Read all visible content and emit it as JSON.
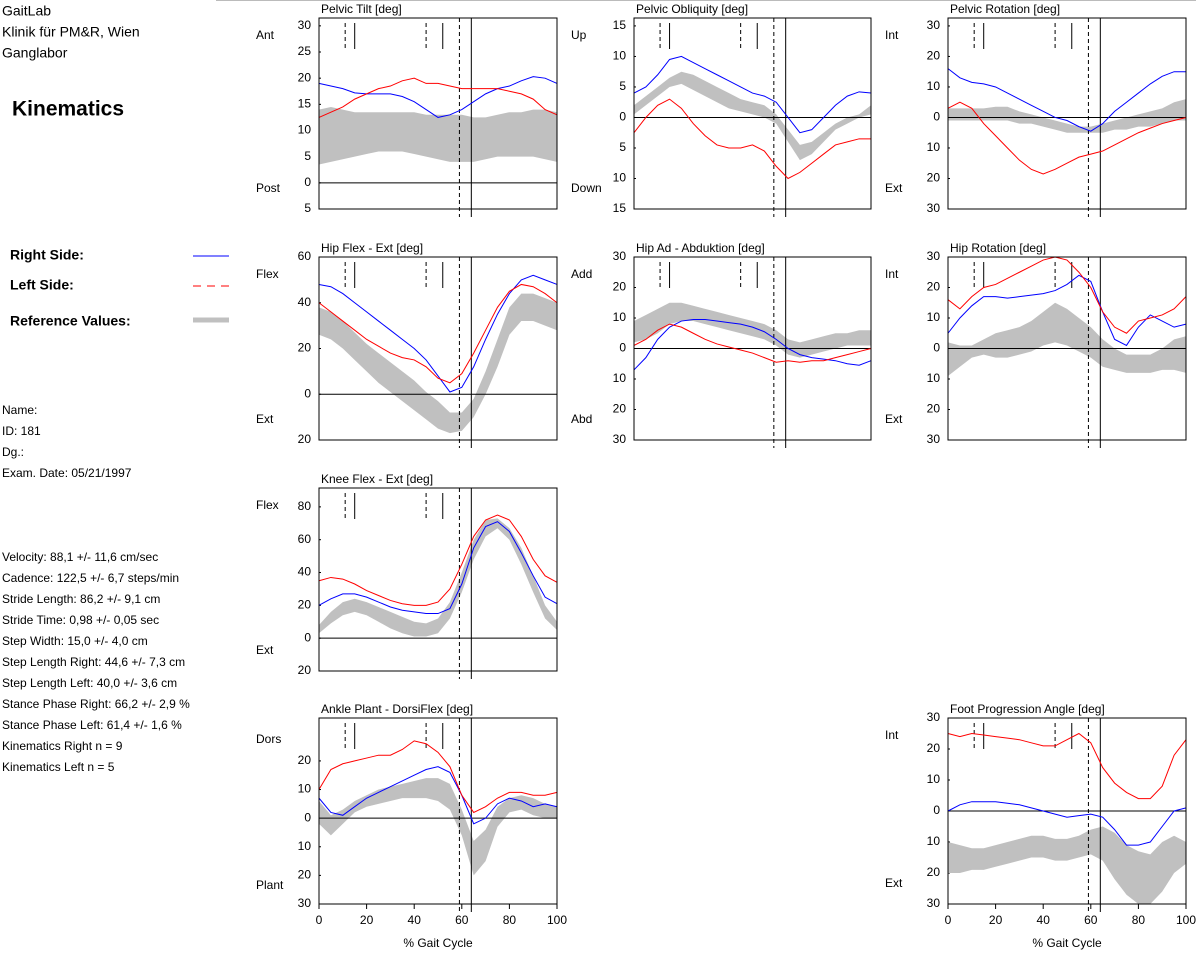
{
  "header": {
    "lab": "GaitLab",
    "clinic": "Klinik für PM&R, Wien",
    "department": "Ganglabor",
    "report": "Kinematics"
  },
  "legend": {
    "right": {
      "name": "Right Side:",
      "color": "#0000ff"
    },
    "left": {
      "name": "Left Side:",
      "color": "#ff0000"
    },
    "reference": {
      "name": "Reference Values:",
      "color": "#c0c0c0"
    }
  },
  "patient": [
    "Name:",
    "ID: 181",
    "Dg.:",
    "Exam. Date: 05/21/1997"
  ],
  "parameters": [
    "Velocity: 88,1 +/- 11,6 cm/sec",
    "Cadence: 122,5 +/- 6,7 steps/min",
    "Stride Length:  86,2 +/- 9,1 cm",
    "Stride Time:  0,98 +/- 0,05 sec",
    "Step Width: 15,0 +/- 4,0 cm",
    "Step Length Right:  44,6 +/- 7,3 cm",
    "Step Length Left:  40,0 +/- 3,6 cm",
    "Stance Phase Right:  66,2 +/- 2,9 %",
    "Stance Phase Left:  61,4 +/- 1,6 %",
    "Kinematics Right n = 9",
    "Kinematics Left n = 5"
  ],
  "events": {
    "left": [
      11,
      45,
      59
    ],
    "right": [
      15,
      52,
      64
    ]
  },
  "chart_data": [
    {
      "type": "line",
      "title": "Pelvic Tilt [deg]",
      "upper_label": "Ant",
      "lower_label": "Post",
      "x": [
        0,
        5,
        10,
        15,
        20,
        25,
        30,
        35,
        40,
        45,
        50,
        55,
        60,
        65,
        70,
        75,
        80,
        85,
        90,
        95,
        100
      ],
      "xlim": [
        0,
        100
      ],
      "ylim": [
        -5,
        31.5
      ],
      "yticks": [
        {
          "value": -5,
          "label": "5"
        },
        0,
        5,
        10,
        15,
        20,
        25,
        30
      ],
      "right": [
        19,
        18.5,
        18,
        17.2,
        17,
        17,
        17,
        16.5,
        15.5,
        14,
        12.5,
        13,
        14,
        15.5,
        17,
        18,
        18.5,
        19.5,
        20.3,
        20,
        19
      ],
      "left": [
        12.5,
        13.5,
        14.5,
        16,
        17,
        18,
        18.5,
        19.5,
        20,
        19,
        19,
        18.5,
        18,
        18,
        18,
        18,
        17.5,
        17,
        16,
        14,
        13
      ],
      "reference": {
        "lower": [
          3.5,
          4,
          4.5,
          5,
          5.5,
          6,
          6,
          6,
          5.5,
          5,
          4.5,
          4,
          4,
          4,
          4.5,
          5,
          5,
          5,
          5,
          4.5,
          4
        ],
        "upper": [
          14,
          14.5,
          14,
          13.5,
          13.5,
          13.5,
          13.5,
          13.5,
          13.5,
          13,
          13,
          13,
          13,
          12.5,
          12.5,
          13,
          13.5,
          13.5,
          14,
          14,
          13.5
        ]
      }
    },
    {
      "type": "line",
      "title": "Pelvic Obliquity [deg]",
      "upper_label": "Up",
      "lower_label": "Down",
      "x": [
        0,
        5,
        10,
        15,
        20,
        25,
        30,
        35,
        40,
        45,
        50,
        55,
        60,
        65,
        70,
        75,
        80,
        85,
        90,
        95,
        100
      ],
      "xlim": [
        0,
        100
      ],
      "ylim": [
        -15,
        16.3
      ],
      "yticks": [
        {
          "value": -15,
          "label": "15"
        },
        {
          "value": -10,
          "label": "10"
        },
        {
          "value": -5,
          "label": "5"
        },
        0,
        5,
        10,
        15
      ],
      "right": [
        4,
        5,
        7,
        9.5,
        10,
        9,
        8,
        7,
        6,
        5,
        4,
        3.5,
        2.5,
        0,
        -2.5,
        -2,
        0,
        2,
        3.5,
        4.2,
        4
      ],
      "left": [
        -2.5,
        0,
        2,
        3,
        1.5,
        -1,
        -3,
        -4.5,
        -5,
        -5,
        -4.5,
        -5.5,
        -8,
        -10,
        -9,
        -7.5,
        -6,
        -4.5,
        -4,
        -3.5,
        -3.5
      ],
      "reference": {
        "lower": [
          0.5,
          2,
          3.5,
          5,
          5.5,
          4.5,
          3.5,
          2.5,
          1.5,
          1,
          0.5,
          0,
          -1,
          -4,
          -7,
          -6,
          -4,
          -2,
          -1,
          0,
          0.5
        ],
        "upper": [
          2,
          3.5,
          5,
          6.5,
          7.5,
          7,
          6,
          5,
          4,
          3,
          2.5,
          2,
          0.5,
          -2,
          -4.5,
          -4,
          -2.5,
          -1,
          0,
          0.5,
          2
        ]
      }
    },
    {
      "type": "line",
      "title": "Pelvic Rotation [deg]",
      "upper_label": "Int",
      "lower_label": "Ext",
      "x": [
        0,
        5,
        10,
        15,
        20,
        25,
        30,
        35,
        40,
        45,
        50,
        55,
        60,
        65,
        70,
        75,
        80,
        85,
        90,
        95,
        100
      ],
      "xlim": [
        0,
        100
      ],
      "ylim": [
        -30,
        32.6
      ],
      "yticks": [
        {
          "value": -30,
          "label": "30"
        },
        {
          "value": -20,
          "label": "20"
        },
        {
          "value": -10,
          "label": "10"
        },
        0,
        10,
        20,
        30
      ],
      "right": [
        16,
        13,
        11.5,
        11,
        10,
        8,
        6,
        4,
        2,
        0,
        -1,
        -3,
        -4.5,
        -2,
        2,
        5,
        8,
        11,
        13.5,
        15,
        15
      ],
      "left": [
        3,
        5,
        3,
        -2,
        -6,
        -10,
        -14,
        -17,
        -18.5,
        -17,
        -15,
        -13,
        -12,
        -11,
        -9,
        -7,
        -5,
        -3.5,
        -2,
        -1,
        0
      ],
      "reference": {
        "lower": [
          -1,
          -1,
          -1,
          -1,
          -1,
          -1,
          -2,
          -2,
          -3,
          -4,
          -5,
          -5,
          -5,
          -5,
          -4,
          -4,
          -3,
          -3,
          -2,
          -1,
          -1
        ],
        "upper": [
          3,
          3,
          3,
          3,
          3.5,
          3.5,
          2,
          1,
          0,
          -1,
          -2,
          -3,
          -3,
          -2,
          -1,
          0,
          1,
          2,
          3,
          5,
          6
        ]
      }
    },
    {
      "type": "line",
      "title": "Hip Flex - Ext [deg]",
      "upper_label": "Flex",
      "lower_label": "Ext",
      "x": [
        0,
        5,
        10,
        15,
        20,
        25,
        30,
        35,
        40,
        45,
        50,
        55,
        60,
        65,
        70,
        75,
        80,
        85,
        90,
        95,
        100
      ],
      "xlim": [
        0,
        100
      ],
      "ylim": [
        -20,
        60
      ],
      "yticks": [
        {
          "value": -20,
          "label": "20"
        },
        0,
        20,
        40,
        60
      ],
      "right": [
        48,
        47,
        44,
        40,
        36,
        32,
        28,
        24,
        20,
        15,
        8,
        1,
        3,
        12,
        24,
        35,
        44,
        50,
        52,
        50,
        48
      ],
      "left": [
        40,
        36,
        32,
        28,
        24,
        21,
        18,
        16,
        15,
        12,
        7,
        5,
        9,
        18,
        28,
        38,
        45,
        48,
        47,
        44,
        40
      ],
      "reference": {
        "lower": [
          26,
          24,
          20,
          15,
          10,
          5,
          1,
          -3,
          -7,
          -11,
          -15,
          -17,
          -16,
          -10,
          0,
          12,
          26,
          32,
          32,
          30,
          28
        ],
        "upper": [
          38,
          36,
          32,
          27,
          22,
          18,
          14,
          10,
          6,
          1,
          -3,
          -8,
          -8,
          -2,
          10,
          24,
          38,
          44,
          44,
          42,
          40
        ]
      }
    },
    {
      "type": "line",
      "title": "Hip Ad - Abduktion [deg]",
      "upper_label": "Add",
      "lower_label": "Abd",
      "x": [
        0,
        5,
        10,
        15,
        20,
        25,
        30,
        35,
        40,
        45,
        50,
        55,
        60,
        65,
        70,
        75,
        80,
        85,
        90,
        95,
        100
      ],
      "xlim": [
        0,
        100
      ],
      "ylim": [
        -30,
        30
      ],
      "yticks": [
        {
          "value": -30,
          "label": "30"
        },
        {
          "value": -20,
          "label": "20"
        },
        {
          "value": -10,
          "label": "10"
        },
        0,
        10,
        20,
        30
      ],
      "right": [
        -7,
        -3,
        3,
        7,
        9,
        9.5,
        9.5,
        9,
        8.5,
        8,
        7,
        5.5,
        3,
        0,
        -2,
        -3,
        -3.5,
        -4,
        -5,
        -5.5,
        -4
      ],
      "left": [
        1,
        3,
        6,
        8,
        7,
        5,
        3,
        1.5,
        0.5,
        -0.5,
        -1.5,
        -3,
        -4.5,
        -4,
        -4.5,
        -4,
        -4,
        -3,
        -2,
        -1,
        0
      ],
      "reference": {
        "lower": [
          2,
          3,
          5,
          8,
          9,
          9,
          8,
          7,
          6,
          5,
          4,
          3,
          1,
          -2,
          -3,
          -2,
          -1,
          0,
          1,
          1,
          1
        ],
        "upper": [
          9,
          11,
          13,
          15,
          15,
          14,
          13,
          12,
          11,
          10,
          9,
          8,
          6,
          3,
          2,
          3,
          4,
          5,
          5,
          6,
          6
        ]
      }
    },
    {
      "type": "line",
      "title": "Hip Rotation [deg]",
      "upper_label": "Int",
      "lower_label": "Ext",
      "x": [
        0,
        5,
        10,
        15,
        20,
        25,
        30,
        35,
        40,
        45,
        50,
        55,
        60,
        65,
        70,
        75,
        80,
        85,
        90,
        95,
        100
      ],
      "xlim": [
        0,
        100
      ],
      "ylim": [
        -30,
        30
      ],
      "yticks": [
        {
          "value": -30,
          "label": "30"
        },
        {
          "value": -20,
          "label": "20"
        },
        {
          "value": -10,
          "label": "10"
        },
        0,
        10,
        20,
        30
      ],
      "right": [
        5,
        10,
        14,
        17,
        17,
        16.5,
        17,
        17.5,
        18,
        19,
        21,
        24,
        22,
        12,
        3,
        1,
        7,
        11,
        9,
        7,
        8
      ],
      "left": [
        16,
        13,
        17,
        20,
        21,
        23,
        25,
        27,
        29,
        30,
        29,
        25,
        20,
        12,
        7,
        5,
        9,
        10,
        11,
        13,
        17
      ],
      "reference": {
        "lower": [
          -9,
          -6,
          -3,
          -2,
          -3,
          -3,
          -2,
          -1,
          1,
          2,
          1,
          -1,
          -3,
          -6,
          -7,
          -8,
          -8,
          -8,
          -7,
          -7,
          -8
        ],
        "upper": [
          2,
          1,
          1,
          3,
          5,
          6,
          7,
          9,
          12,
          15,
          13,
          10,
          7,
          3,
          0,
          -2,
          -2,
          -2,
          0,
          3,
          4
        ]
      }
    },
    {
      "type": "line",
      "title": "Knee Flex - Ext [deg]",
      "upper_label": "Flex",
      "lower_label": "Ext",
      "x": [
        0,
        5,
        10,
        15,
        20,
        25,
        30,
        35,
        40,
        45,
        50,
        55,
        60,
        65,
        70,
        75,
        80,
        85,
        90,
        95,
        100
      ],
      "xlim": [
        0,
        100
      ],
      "ylim": [
        -20,
        91.5
      ],
      "yticks": [
        {
          "value": -20,
          "label": "20"
        },
        0,
        20,
        40,
        60,
        80
      ],
      "right": [
        20,
        24,
        27,
        27,
        25,
        22,
        19,
        17,
        16,
        15,
        15,
        18,
        33,
        55,
        68,
        71,
        65,
        52,
        38,
        25,
        21
      ],
      "left": [
        35,
        37,
        36,
        33,
        29,
        26,
        23,
        21,
        20,
        20,
        22,
        30,
        45,
        62,
        72,
        75,
        72,
        62,
        48,
        38,
        34
      ],
      "reference": {
        "lower": [
          3,
          9,
          14,
          16,
          14,
          10,
          6,
          3,
          1,
          1,
          3,
          12,
          28,
          48,
          62,
          67,
          60,
          45,
          28,
          12,
          5
        ],
        "upper": [
          8,
          16,
          22,
          24,
          22,
          19,
          16,
          13,
          10,
          9,
          12,
          22,
          40,
          60,
          72,
          73,
          67,
          55,
          38,
          20,
          10
        ]
      }
    },
    {
      "type": "line",
      "title": "Ankle Plant - DorsiFlex [deg]",
      "upper_label": "Dors",
      "lower_label": "Plant",
      "x": [
        0,
        5,
        10,
        15,
        20,
        25,
        30,
        35,
        40,
        45,
        50,
        55,
        60,
        65,
        70,
        75,
        80,
        85,
        90,
        95,
        100
      ],
      "xlim": [
        0,
        100
      ],
      "xticks": [
        0,
        20,
        40,
        60,
        80,
        100
      ],
      "xlabel": "% Gait Cycle",
      "ylim": [
        -30,
        35
      ],
      "yticks": [
        {
          "value": -30,
          "label": "30"
        },
        {
          "value": -20,
          "label": "20"
        },
        {
          "value": -10,
          "label": "10"
        },
        0,
        10,
        20
      ],
      "right": [
        7,
        2,
        1,
        4,
        7,
        9,
        11,
        13,
        15,
        17,
        18,
        16,
        8,
        -2,
        0,
        5,
        7,
        6,
        4,
        5,
        4
      ],
      "left": [
        10,
        17,
        19,
        20,
        21,
        22,
        22,
        24,
        27,
        26,
        23,
        18,
        8,
        2,
        4,
        7,
        9,
        9,
        8,
        8,
        9
      ],
      "reference": {
        "lower": [
          -2,
          -6,
          -2,
          2,
          4,
          5,
          6,
          7,
          7,
          7,
          6,
          3,
          -6,
          -20,
          -15,
          -3,
          2,
          3,
          1,
          0,
          0
        ],
        "upper": [
          6,
          1,
          3,
          6,
          8,
          10,
          11,
          12,
          13,
          14,
          14,
          12,
          3,
          -8,
          -4,
          4,
          7,
          8,
          7,
          5,
          4
        ]
      }
    },
    {
      "type": "line",
      "title": "Foot Progression Angle [deg]",
      "upper_label": "Int",
      "lower_label": "Ext",
      "x": [
        0,
        5,
        10,
        15,
        20,
        25,
        30,
        35,
        40,
        45,
        50,
        55,
        60,
        65,
        70,
        75,
        80,
        85,
        90,
        95,
        100
      ],
      "xlim": [
        0,
        100
      ],
      "xticks": [
        0,
        20,
        40,
        60,
        80,
        100
      ],
      "xlabel": "% Gait Cycle",
      "ylim": [
        -30,
        30
      ],
      "yticks": [
        {
          "value": -30,
          "label": "30"
        },
        {
          "value": -20,
          "label": "20"
        },
        {
          "value": -10,
          "label": "10"
        },
        0,
        10,
        20,
        30
      ],
      "right": [
        0,
        2,
        3,
        3,
        3,
        2.5,
        2,
        1,
        0,
        -1,
        -2,
        -1.5,
        -1,
        -2,
        -6,
        -11,
        -11,
        -10,
        -5,
        0,
        1
      ],
      "left": [
        25,
        24,
        25,
        24.5,
        24,
        23.5,
        23,
        22,
        21,
        21,
        23,
        25,
        22,
        14,
        9,
        6,
        4,
        4,
        8,
        18,
        23
      ],
      "reference": {
        "lower": [
          -20,
          -20,
          -19,
          -19,
          -18,
          -17,
          -16,
          -15,
          -15,
          -16,
          -16,
          -15,
          -14,
          -16,
          -22,
          -27,
          -30,
          -30,
          -26,
          -20,
          -17
        ],
        "upper": [
          -10,
          -11,
          -12,
          -12,
          -11,
          -10,
          -9,
          -8,
          -8,
          -9,
          -9,
          -8,
          -6,
          -5,
          -7,
          -11,
          -13,
          -14,
          -10,
          -8,
          -10
        ]
      }
    }
  ]
}
